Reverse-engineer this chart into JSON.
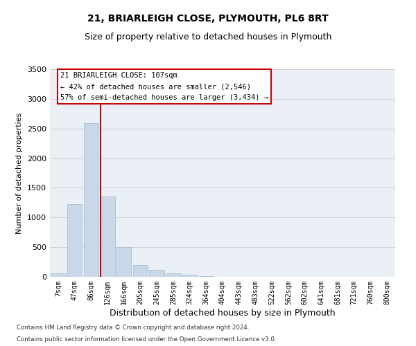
{
  "title": "21, BRIARLEIGH CLOSE, PLYMOUTH, PL6 8RT",
  "subtitle": "Size of property relative to detached houses in Plymouth",
  "xlabel": "Distribution of detached houses by size in Plymouth",
  "ylabel": "Number of detached properties",
  "bar_color": "#c8d8e8",
  "bar_edge_color": "#a0b8cc",
  "bin_labels": [
    "7sqm",
    "47sqm",
    "86sqm",
    "126sqm",
    "166sqm",
    "205sqm",
    "245sqm",
    "285sqm",
    "324sqm",
    "364sqm",
    "404sqm",
    "443sqm",
    "483sqm",
    "522sqm",
    "562sqm",
    "602sqm",
    "641sqm",
    "681sqm",
    "721sqm",
    "760sqm",
    "800sqm"
  ],
  "bar_heights": [
    55,
    1230,
    2590,
    1350,
    500,
    200,
    115,
    55,
    30,
    10,
    5,
    0,
    0,
    0,
    0,
    0,
    0,
    0,
    0,
    0,
    0
  ],
  "ylim": [
    0,
    3500
  ],
  "yticks": [
    0,
    500,
    1000,
    1500,
    2000,
    2500,
    3000,
    3500
  ],
  "red_line_x": 2.57,
  "annotation_title": "21 BRIARLEIGH CLOSE: 107sqm",
  "annotation_line1": "← 42% of detached houses are smaller (2,546)",
  "annotation_line2": "57% of semi-detached houses are larger (3,434) →",
  "footnote1": "Contains HM Land Registry data © Crown copyright and database right 2024.",
  "footnote2": "Contains public sector information licensed under the Open Government Licence v3.0.",
  "background_color": "#ffffff",
  "plot_bg_color": "#eaf0f6",
  "grid_color": "#c8c8c8",
  "annotation_box_color": "#ffffff",
  "annotation_box_edge": "#cc0000",
  "red_line_color": "#cc0000",
  "title_fontsize": 10,
  "subtitle_fontsize": 9
}
